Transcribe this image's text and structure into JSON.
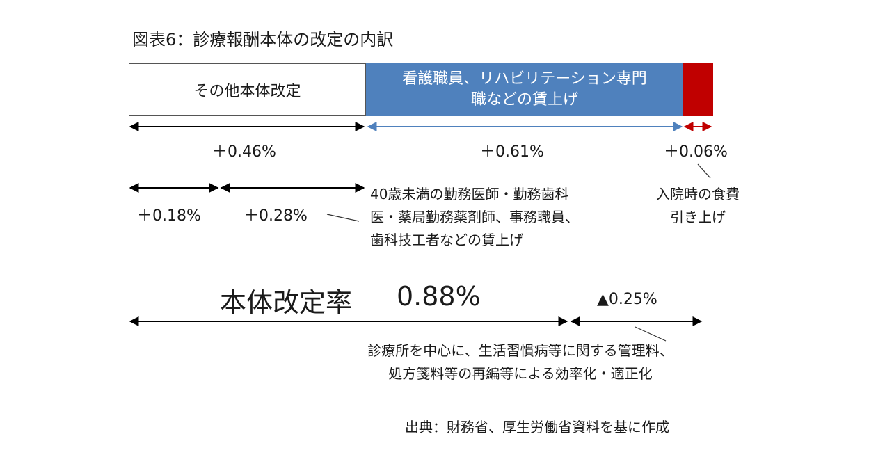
{
  "title": "図表6：診療報酬本体の改定の内訳",
  "bar": {
    "other_label": "その他本体改定",
    "nurse_label_line1": "看護職員、リハビリテーション専門",
    "nurse_label_line2": "職などの賃上げ",
    "colors": {
      "other": "#ffffff",
      "nurse": "#4f81bd",
      "meal": "#c00000"
    }
  },
  "values": {
    "other": "＋0.46%",
    "nurse": "＋0.61%",
    "meal": "＋0.06%",
    "sub_a": "＋0.18%",
    "sub_b": "＋0.28%"
  },
  "notes": {
    "staff_line1": "40歳未満の勤務医師・勤務歯科",
    "staff_line2": "医・薬局勤務薬剤師、事務職員、",
    "staff_line3": "歯科技工者などの賃上げ",
    "meal_line1": "入院時の食費",
    "meal_line2": "引き上げ"
  },
  "total": {
    "label": "本体改定率",
    "value": "0.88%",
    "reduction": "▲0.25%",
    "reduction_note_line1": "診療所を中心に、生活習慣病等に関する管理料、",
    "reduction_note_line2": "処方箋料等の再編等による効率化・適正化"
  },
  "source": "出典：財務省、厚生労働省資料を基に作成"
}
